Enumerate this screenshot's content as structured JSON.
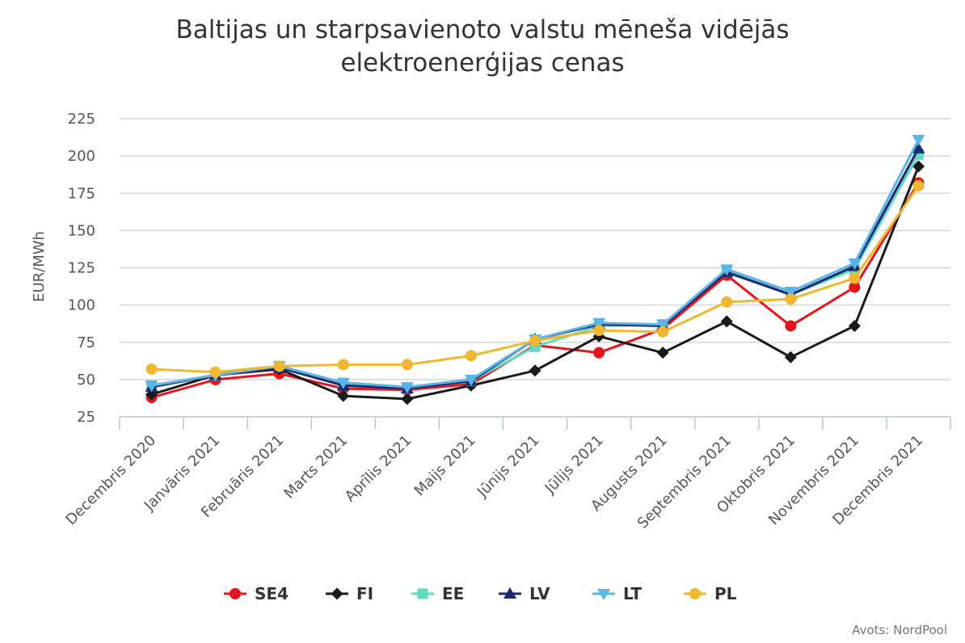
{
  "chart_data": {
    "type": "line",
    "title": [
      "Baltijas un starpsavienoto valstu mēneša vidējās",
      "elektroenerģijas cenas"
    ],
    "ylabel": "EUR/MWh",
    "xlabel": "",
    "ylim": [
      25,
      225
    ],
    "yticks": [
      25,
      50,
      75,
      100,
      125,
      150,
      175,
      200,
      225
    ],
    "grid": true,
    "legend_position": "bottom",
    "categories": [
      "Decembris 2020",
      "Janvāris 2021",
      "Februāris 2021",
      "Marts 2021",
      "Aprīlis 2021",
      "Maijs 2021",
      "Jūnijs 2021",
      "Jūlijs 2021",
      "Augusts 2021",
      "Septembris 2021",
      "Oktobris 2021",
      "Novembris 2021",
      "Decembris 2021"
    ],
    "series": [
      {
        "name": "SE4",
        "color": "#e8141b",
        "marker": "circle",
        "values": [
          38,
          50,
          54,
          44,
          43,
          47,
          73,
          68,
          84,
          120,
          86,
          112,
          182
        ]
      },
      {
        "name": "FI",
        "color": "#1a1a1a",
        "marker": "diamond",
        "values": [
          40,
          53,
          57,
          39,
          37,
          46,
          56,
          79,
          68,
          89,
          65,
          86,
          193
        ]
      },
      {
        "name": "EE",
        "color": "#5fdbc0",
        "marker": "square",
        "values": [
          46,
          53,
          59,
          47,
          44,
          49,
          72,
          86,
          87,
          123,
          107,
          124,
          201
        ]
      },
      {
        "name": "LV",
        "color": "#1f2a6e",
        "marker": "triangle-up",
        "values": [
          45,
          53,
          58,
          46,
          44,
          49,
          77,
          87,
          86,
          122,
          107,
          126,
          205
        ]
      },
      {
        "name": "LT",
        "color": "#5ab4e5",
        "marker": "triangle-down",
        "values": [
          46,
          53,
          59,
          48,
          45,
          50,
          77,
          88,
          87,
          124,
          109,
          128,
          211
        ]
      },
      {
        "name": "PL",
        "color": "#f0b730",
        "marker": "circle",
        "values": [
          57,
          55,
          59,
          60,
          60,
          66,
          76,
          83,
          82,
          102,
          104,
          118,
          180
        ]
      }
    ],
    "source": "Avots: NordPool"
  }
}
